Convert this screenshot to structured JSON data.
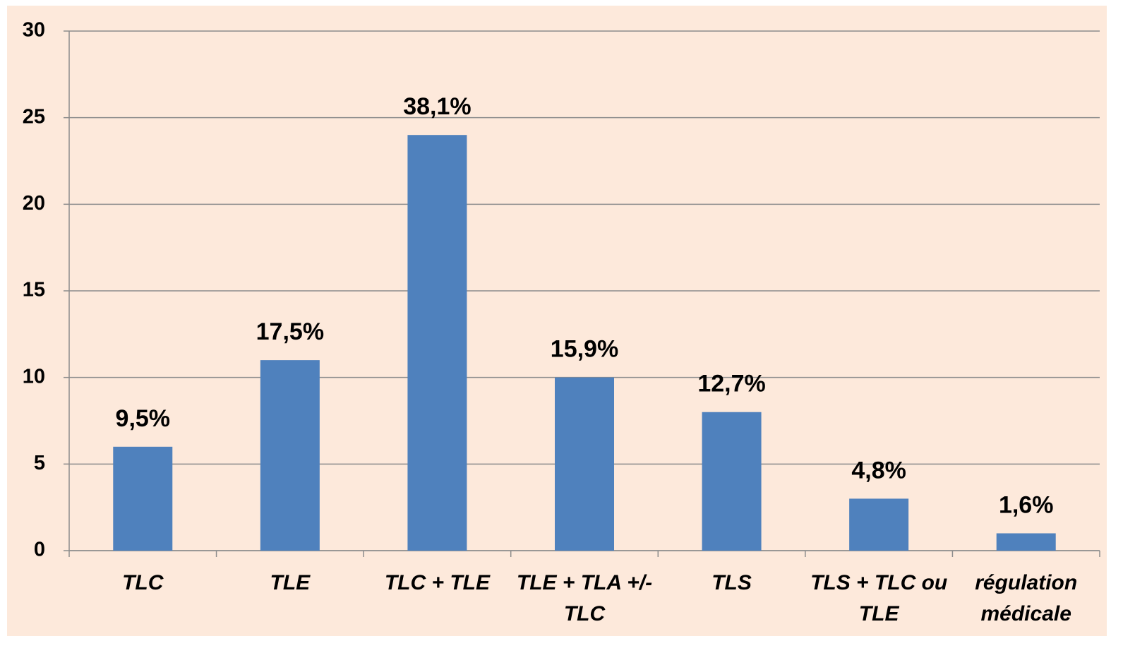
{
  "chart_data": {
    "type": "bar",
    "categories": [
      "TLC",
      "TLE",
      "TLC + TLE",
      "TLE + TLA +/- TLC",
      "TLS",
      "TLS + TLC ou TLE",
      "régulation médicale"
    ],
    "values": [
      6,
      11,
      24,
      10,
      8,
      3,
      1
    ],
    "percents": [
      9.5,
      17.5,
      38.1,
      15.9,
      12.7,
      4.8,
      1.6
    ],
    "percent_labels": [
      "9,5%",
      "17,5%",
      "38,1%",
      "15,9%",
      "12,7%",
      "4,8%",
      "1,6%"
    ],
    "color": "#4f81bd",
    "ylim": [
      0,
      30
    ],
    "yticks": [
      0,
      5,
      10,
      15,
      20,
      25,
      30
    ],
    "grid": true
  }
}
